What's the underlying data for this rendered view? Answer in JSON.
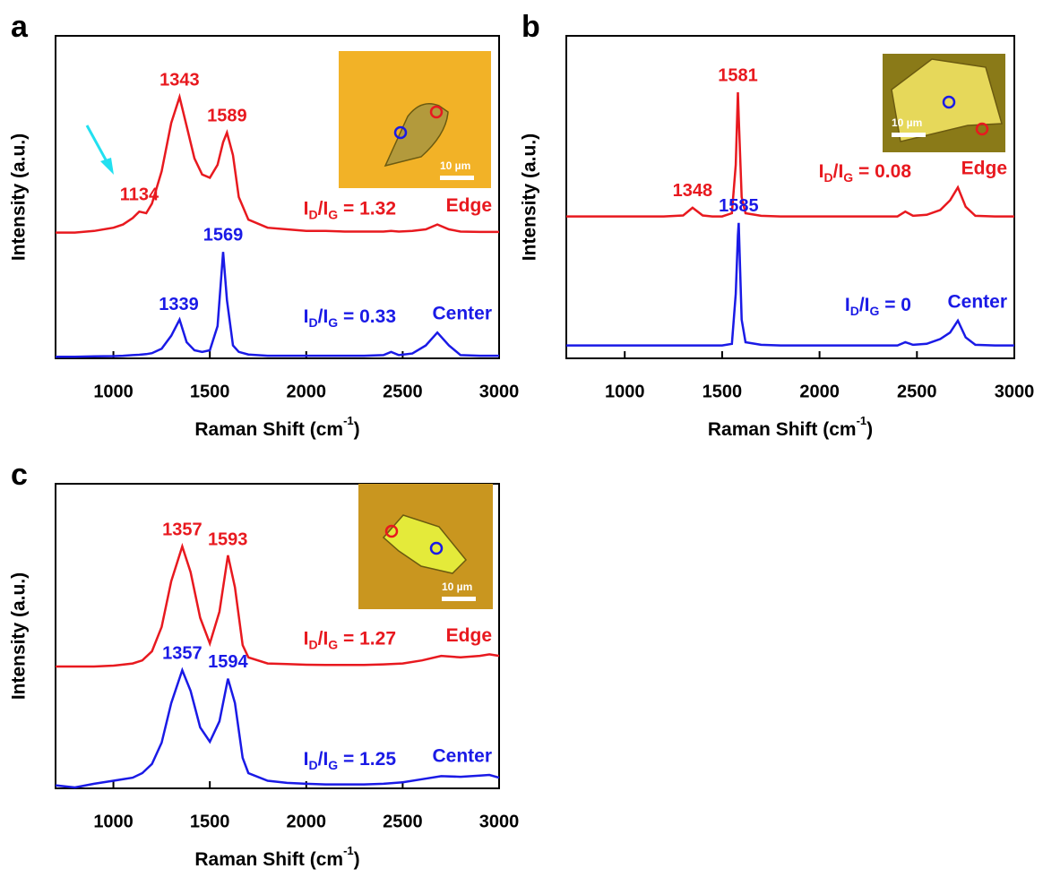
{
  "chart_data": [
    {
      "type": "line",
      "panel": "a",
      "x_label": [
        "Raman Shift (cm",
        "-1",
        ")"
      ],
      "y_label": "Intensity (a.u.)",
      "x": [
        700,
        800,
        900,
        1000,
        1050,
        1100,
        1134,
        1170,
        1200,
        1250,
        1300,
        1343,
        1380,
        1420,
        1460,
        1500,
        1540,
        1569,
        1589,
        1620,
        1650,
        1700,
        1800,
        1900,
        2000,
        2100,
        2200,
        2300,
        2400,
        2440,
        2480,
        2550,
        2620,
        2680,
        2740,
        2800,
        2900,
        3000
      ],
      "xlim": [
        700,
        3000
      ],
      "xticks": [
        1000,
        1500,
        2000,
        2500,
        3000
      ],
      "ylim": [
        0,
        100
      ],
      "series": [
        {
          "name": "Edge",
          "color": "#e8191f",
          "values": [
            39,
            39,
            39.5,
            40.5,
            41.5,
            43.5,
            45.5,
            45,
            48,
            58,
            73,
            81,
            72,
            62,
            57,
            56,
            60,
            67,
            70,
            63,
            50,
            43,
            40.5,
            40,
            39.5,
            39.5,
            39.3,
            39.3,
            39.3,
            39.5,
            39.3,
            39.5,
            40,
            41.5,
            40,
            39.3,
            39.2,
            39.2
          ],
          "peaks": [
            1134,
            1343,
            1589
          ],
          "ratio_text": [
            "I",
            "D",
            "/I",
            "G",
            " = 1.32"
          ]
        },
        {
          "name": "Center",
          "color": "#1a1ae6",
          "values": [
            0.5,
            0.5,
            0.6,
            0.7,
            0.8,
            1,
            1.1,
            1.3,
            1.6,
            3,
            7,
            12,
            5,
            2.5,
            2,
            2.5,
            10,
            33,
            18,
            4,
            2,
            1.2,
            0.8,
            0.8,
            0.8,
            0.8,
            0.8,
            0.8,
            1,
            2,
            1,
            1.5,
            4,
            8,
            4,
            1,
            0.8,
            0.8
          ],
          "peaks": [
            1339,
            1569
          ],
          "ratio_text": [
            "I",
            "D",
            "/I",
            "G",
            " = 0.33"
          ]
        }
      ],
      "inset_scale_label": "10 µm"
    },
    {
      "type": "line",
      "panel": "b",
      "x_label": [
        "Raman Shift (cm",
        "-1",
        ")"
      ],
      "y_label": "Intensity (a.u.)",
      "x": [
        700,
        800,
        900,
        1000,
        1100,
        1200,
        1300,
        1348,
        1400,
        1450,
        1500,
        1550,
        1570,
        1581,
        1585,
        1600,
        1620,
        1700,
        1800,
        1900,
        2000,
        2100,
        2200,
        2300,
        2400,
        2440,
        2480,
        2550,
        2620,
        2670,
        2710,
        2750,
        2800,
        2900,
        3000
      ],
      "xlim": [
        700,
        3000
      ],
      "xticks": [
        1000,
        1500,
        2000,
        2500,
        3000
      ],
      "ylim": [
        0,
        100
      ],
      "series": [
        {
          "name": "Edge",
          "color": "#e8191f",
          "values": [
            44,
            44,
            44,
            44,
            44,
            44,
            44.3,
            46.7,
            44.3,
            44,
            44,
            45,
            60,
            82.5,
            75,
            50,
            45,
            44.2,
            44,
            44,
            44,
            44,
            44,
            44,
            44,
            45.5,
            44.2,
            44.5,
            46,
            49,
            53,
            47,
            44.2,
            44,
            44
          ],
          "peaks": [
            1348,
            1581
          ],
          "ratio_text": [
            "I",
            "D",
            "/I",
            "G",
            " = 0.08"
          ]
        },
        {
          "name": "Center",
          "color": "#1a1ae6",
          "values": [
            4,
            4,
            4,
            4,
            4,
            4,
            4,
            4,
            4,
            4,
            4,
            4.5,
            20,
            38,
            42,
            12,
            5,
            4.2,
            4,
            4,
            4,
            4,
            4,
            4,
            4,
            5,
            4.2,
            4.5,
            6,
            8,
            11.7,
            6.5,
            4.2,
            4,
            4
          ],
          "peaks": [
            1585
          ],
          "ratio_text": [
            "I",
            "D",
            "/I",
            "G",
            " = 0"
          ]
        }
      ],
      "inset_scale_label": "10 µm"
    },
    {
      "type": "line",
      "panel": "c",
      "x_label": [
        "Raman Shift (cm",
        "-1",
        ")"
      ],
      "y_label": "Intensity (a.u.)",
      "x": [
        700,
        800,
        900,
        1000,
        1100,
        1150,
        1200,
        1250,
        1300,
        1357,
        1400,
        1450,
        1500,
        1550,
        1594,
        1630,
        1670,
        1700,
        1800,
        1900,
        2000,
        2100,
        2200,
        2300,
        2400,
        2500,
        2600,
        2700,
        2800,
        2900,
        2950,
        3000
      ],
      "xlim": [
        700,
        3000
      ],
      "xticks": [
        1000,
        1500,
        2000,
        2500,
        3000
      ],
      "ylim": [
        0,
        100
      ],
      "series": [
        {
          "name": "Edge",
          "color": "#e8191f",
          "values": [
            40,
            40,
            40,
            40.3,
            41,
            42,
            45,
            53,
            68,
            79.4,
            71,
            56,
            47.6,
            58,
            76.5,
            66,
            47,
            43,
            41,
            40.8,
            40.6,
            40.5,
            40.5,
            40.5,
            40.7,
            41,
            42,
            43.5,
            43,
            43.5,
            44,
            43.5
          ],
          "peaks": [
            1357,
            1593
          ],
          "ratio_text": [
            "I",
            "D",
            "/I",
            "G",
            " = 1.27"
          ]
        },
        {
          "name": "Center",
          "color": "#1a1ae6",
          "values": [
            1,
            0.3,
            1.5,
            2.5,
            3.5,
            5,
            8,
            15,
            28,
            38.8,
            32,
            20,
            15.3,
            22,
            36,
            28,
            10,
            5,
            2.5,
            1.8,
            1.5,
            1.3,
            1.3,
            1.3,
            1.5,
            2,
            3,
            4,
            3.8,
            4.2,
            4.4,
            3.5
          ],
          "peaks": [
            1357,
            1594
          ],
          "ratio_text": [
            "I",
            "D",
            "/I",
            "G",
            " = 1.25"
          ]
        }
      ],
      "inset_scale_label": "10 µm"
    }
  ]
}
